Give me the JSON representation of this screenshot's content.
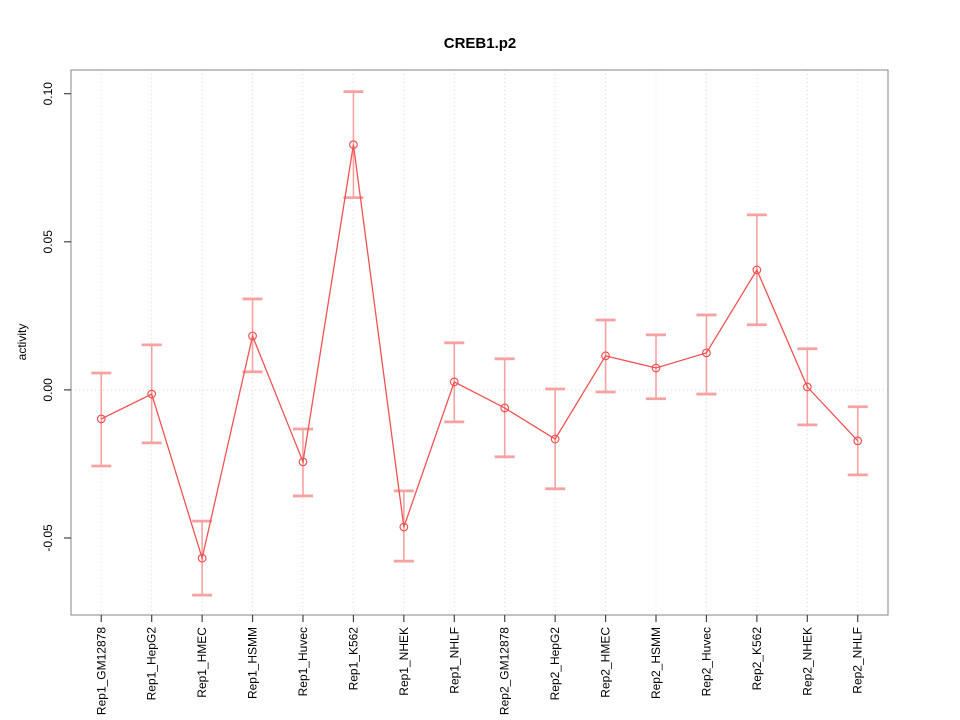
{
  "chart_data": {
    "type": "line",
    "title": "CREB1.p2",
    "xlabel": "",
    "ylabel": "activity",
    "legend": null,
    "grid": "dotted vertical gridline at every category; dotted horizontal gridline at y=0",
    "marker": "open-circle",
    "error_bars": true,
    "categories": [
      "Rep1_GM12878",
      "Rep1_HepG2",
      "Rep1_HMEC",
      "Rep1_HSMM",
      "Rep1_Huvec",
      "Rep1_K562",
      "Rep1_NHEK",
      "Rep1_NHLF",
      "Rep2_GM12878",
      "Rep2_HepG2",
      "Rep2_HMEC",
      "Rep2_HSMM",
      "Rep2_Huvec",
      "Rep2_K562",
      "Rep2_NHEK",
      "Rep2_NHLF"
    ],
    "series": [
      {
        "name": "activity",
        "values": [
          -0.0098,
          -0.0014,
          -0.0568,
          0.0182,
          -0.0243,
          0.0828,
          -0.0463,
          0.0027,
          -0.0061,
          -0.0166,
          0.0115,
          0.0074,
          0.0125,
          0.0405,
          0.001,
          -0.0172
        ],
        "ci_low": [
          -0.0257,
          -0.0179,
          -0.0693,
          0.0061,
          -0.0358,
          0.0649,
          -0.0578,
          -0.0108,
          -0.0226,
          -0.0334,
          -0.0007,
          -0.003,
          -0.0014,
          0.022,
          -0.0118,
          -0.0287
        ],
        "ci_high": [
          0.0057,
          0.0152,
          -0.0443,
          0.0307,
          -0.0132,
          0.1007,
          -0.0341,
          0.0159,
          0.0105,
          0.0003,
          0.0236,
          0.0186,
          0.0253,
          0.0591,
          0.0139,
          -0.0057
        ]
      }
    ],
    "ylim": [
      -0.076,
      0.108
    ],
    "yticks": [
      -0.05,
      0.0,
      0.05,
      0.1
    ],
    "ytick_labels": [
      "-0.05",
      "0.00",
      "0.05",
      "0.10"
    ],
    "colors": {
      "line": "#ef5353",
      "error_bar": "#f6a2a2",
      "grid": "#d9d9d9",
      "box": "#999999",
      "text": "#000000",
      "background": "#ffffff"
    }
  }
}
